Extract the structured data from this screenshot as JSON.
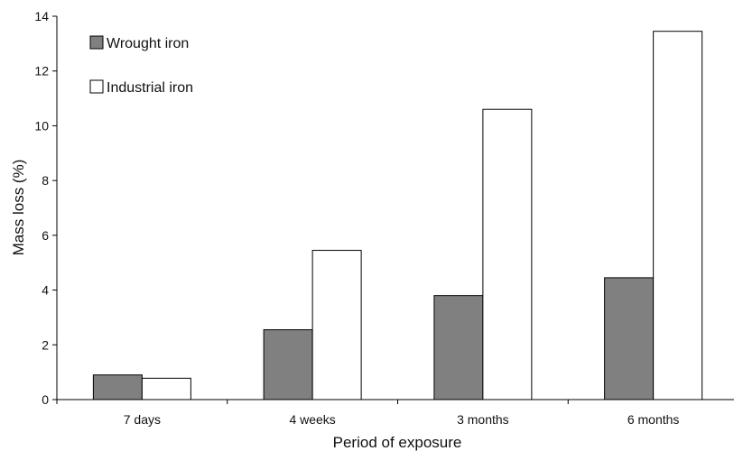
{
  "chart_data": {
    "type": "bar",
    "categories": [
      "7 days",
      "4 weeks",
      "3 months",
      "6 months"
    ],
    "series": [
      {
        "name": "Wrought iron",
        "values": [
          0.9,
          2.55,
          3.8,
          4.45
        ],
        "color": "#808080"
      },
      {
        "name": "Industrial iron",
        "values": [
          0.78,
          5.45,
          10.6,
          13.45
        ],
        "color": "#ffffff"
      }
    ],
    "xlabel": "Period of exposure",
    "ylabel": "Mass loss (%)",
    "ylim": [
      0,
      14
    ],
    "yticks": [
      "0",
      "2",
      "4",
      "6",
      "8",
      "10",
      "12",
      "14"
    ],
    "grid": false,
    "legend_position": "top-left"
  }
}
